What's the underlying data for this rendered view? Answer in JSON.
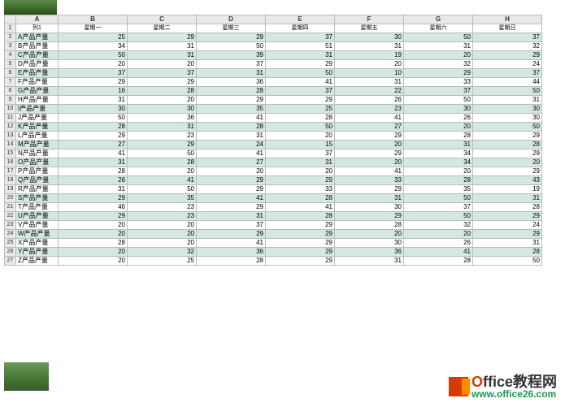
{
  "columns": [
    "A",
    "B",
    "C",
    "D",
    "E",
    "F",
    "G",
    "H"
  ],
  "headerRow": [
    "列1",
    "星期一",
    "星期二",
    "星期三",
    "星期四",
    "星期五",
    "星期六",
    "星期日"
  ],
  "rows": [
    [
      "A产品产量",
      25,
      29,
      29,
      37,
      30,
      50,
      37
    ],
    [
      "B产品产量",
      34,
      31,
      50,
      51,
      31,
      31,
      32
    ],
    [
      "C产品产量",
      50,
      31,
      39,
      31,
      19,
      20,
      29
    ],
    [
      "D产品产量",
      20,
      20,
      37,
      29,
      20,
      32,
      24
    ],
    [
      "E产品产量",
      37,
      37,
      31,
      50,
      10,
      29,
      37
    ],
    [
      "F产品产量",
      29,
      29,
      36,
      41,
      31,
      33,
      44
    ],
    [
      "G产品产量",
      16,
      28,
      28,
      37,
      22,
      37,
      50
    ],
    [
      "H产品产量",
      31,
      20,
      29,
      29,
      26,
      50,
      31
    ],
    [
      "I产品产量",
      30,
      30,
      35,
      25,
      23,
      30,
      30
    ],
    [
      "J产品产量",
      50,
      36,
      41,
      28,
      41,
      26,
      30
    ],
    [
      "K产品产量",
      28,
      31,
      28,
      50,
      27,
      20,
      50
    ],
    [
      "L产品产量",
      29,
      23,
      31,
      20,
      29,
      28,
      29
    ],
    [
      "M产品产量",
      27,
      29,
      24,
      15,
      20,
      31,
      28
    ],
    [
      "N产品产量",
      41,
      50,
      41,
      37,
      29,
      34,
      29
    ],
    [
      "O产品产量",
      31,
      28,
      27,
      31,
      20,
      34,
      20
    ],
    [
      "P产品产量",
      28,
      20,
      20,
      20,
      41,
      20,
      29
    ],
    [
      "Q产品产量",
      26,
      41,
      29,
      29,
      33,
      28,
      43
    ],
    [
      "R产品产量",
      31,
      50,
      29,
      33,
      29,
      35,
      19
    ],
    [
      "S产品产量",
      29,
      35,
      41,
      28,
      31,
      50,
      31
    ],
    [
      "T产品产量",
      46,
      23,
      29,
      41,
      30,
      37,
      28
    ],
    [
      "U产品产量",
      29,
      23,
      31,
      28,
      29,
      50,
      29
    ],
    [
      "V产品产量",
      20,
      20,
      37,
      29,
      28,
      32,
      24
    ],
    [
      "W产品产量",
      20,
      20,
      29,
      29,
      20,
      20,
      29
    ],
    [
      "X产品产量",
      28,
      20,
      41,
      29,
      30,
      26,
      31
    ],
    [
      "Y产品产量",
      20,
      32,
      36,
      29,
      36,
      41,
      28
    ],
    [
      "Z产品产量",
      20,
      25,
      28,
      29,
      31,
      28,
      50
    ]
  ],
  "stripeColor": "#d4e8e0",
  "logo": {
    "main1": "O",
    "main2": "ffice教程网",
    "sub": "www.office26.com"
  }
}
